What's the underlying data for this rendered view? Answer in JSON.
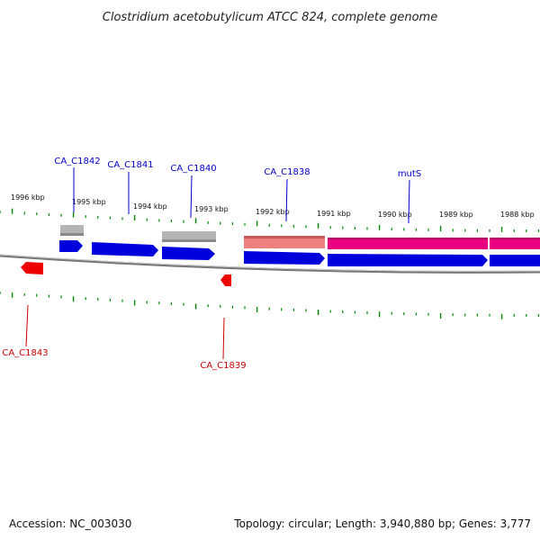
{
  "title": "Clostridium acetobutylicum ATCC 824, complete genome",
  "accession": "Accession: NC_003030",
  "summary": "Topology: circular; Length: 3,940,880 bp; Genes: 3,777",
  "colors": {
    "forward_gene": "#0000dd",
    "reverse_gene": "#ee0000",
    "label_blue": "#0000cc",
    "label_red": "#cc0000",
    "gray_feature": "#b4b4b4",
    "pink_feature": "#e8007e",
    "light_pink_feature": "#ee8080",
    "tick": "#008800",
    "backbone": "#777777"
  },
  "kbp_labels": [
    {
      "id": "kbp-1996",
      "text": "1996 kbp"
    },
    {
      "id": "kbp-1995",
      "text": "1995 kbp"
    },
    {
      "id": "kbp-1994",
      "text": "1994 kbp"
    },
    {
      "id": "kbp-1993",
      "text": "1993 kbp"
    },
    {
      "id": "kbp-1992",
      "text": "1992 kbp"
    },
    {
      "id": "kbp-1991",
      "text": "1991 kbp"
    },
    {
      "id": "kbp-1990",
      "text": "1990 kbp"
    },
    {
      "id": "kbp-1989",
      "text": "1989 kbp"
    },
    {
      "id": "kbp-1988",
      "text": "1988 kbp"
    }
  ],
  "gene_labels": [
    {
      "id": "CA_C1842",
      "text": "CA_C1842",
      "strand": "forward"
    },
    {
      "id": "CA_C1841",
      "text": "CA_C1841",
      "strand": "forward"
    },
    {
      "id": "CA_C1840",
      "text": "CA_C1840",
      "strand": "forward"
    },
    {
      "id": "CA_C1838",
      "text": "CA_C1838",
      "strand": "forward"
    },
    {
      "id": "mutS",
      "text": "mutS",
      "strand": "forward"
    },
    {
      "id": "CA_C1843",
      "text": "CA_C1843",
      "strand": "reverse"
    },
    {
      "id": "CA_C1839",
      "text": "CA_C1839",
      "strand": "reverse"
    }
  ]
}
